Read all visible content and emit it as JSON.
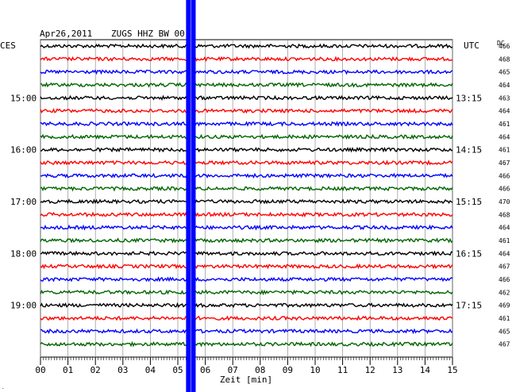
{
  "header": {
    "date": "Apr26,2011",
    "station": "ZUGS HHZ BW 00",
    "left_tz": "CES",
    "right_tz": "UTC",
    "dc_label": "DC"
  },
  "chart_data": {
    "type": "line",
    "title": "Apr26,2011   ZUGS HHZ BW 00",
    "xlabel": "Zeit [min]",
    "xlim": [
      0,
      15
    ],
    "x_ticks": [
      "00",
      "01",
      "02",
      "03",
      "04",
      "05",
      "06",
      "07",
      "08",
      "09",
      "10",
      "11",
      "12",
      "13",
      "14",
      "15"
    ],
    "trace_colors": [
      "#000000",
      "#ff0000",
      "#0000ff",
      "#006400"
    ],
    "left_hour_labels": [
      {
        "trace": 4,
        "text": "15:00"
      },
      {
        "trace": 8,
        "text": "16:00"
      },
      {
        "trace": 12,
        "text": "17:00"
      },
      {
        "trace": 16,
        "text": "18:00"
      },
      {
        "trace": 20,
        "text": "19:00"
      }
    ],
    "right_hour_labels": [
      {
        "trace": 4,
        "text": "13:15"
      },
      {
        "trace": 8,
        "text": "14:15"
      },
      {
        "trace": 12,
        "text": "15:15"
      },
      {
        "trace": 16,
        "text": "16:15"
      },
      {
        "trace": 20,
        "text": "17:15"
      }
    ],
    "dc_values": [
      "466",
      "468",
      "465",
      "464",
      "463",
      "464",
      "461",
      "464",
      "461",
      "467",
      "466",
      "466",
      "470",
      "468",
      "464",
      "461",
      "464",
      "467",
      "466",
      "462",
      "469",
      "461",
      "465",
      "467"
    ],
    "event": {
      "start_min": 5.3,
      "end_min": 5.65,
      "color": "#0000ff"
    }
  }
}
